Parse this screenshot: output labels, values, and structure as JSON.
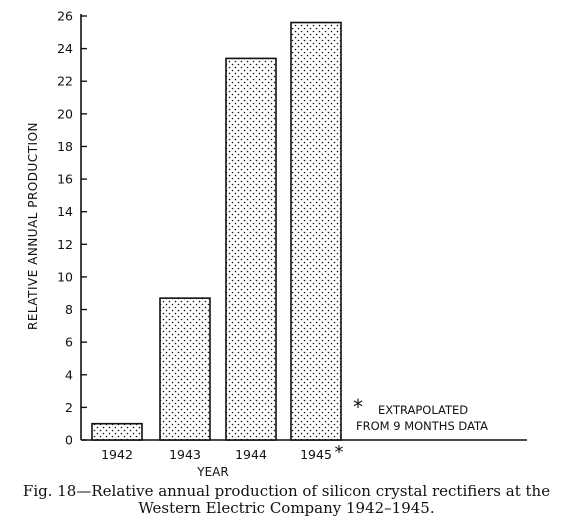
{
  "chart_data": {
    "type": "bar",
    "categories": [
      "1942",
      "1943",
      "1944",
      "1945"
    ],
    "values": [
      1.0,
      8.7,
      23.4,
      25.6
    ],
    "category_marks": [
      "",
      "",
      "",
      "*"
    ],
    "ylabel": "RELATIVE ANNUAL PRODUCTION",
    "xlabel": "YEAR",
    "ylim": [
      0,
      26
    ],
    "yticks": [
      0,
      2,
      4,
      6,
      8,
      10,
      12,
      14,
      16,
      18,
      20,
      22,
      24,
      26
    ],
    "grid": false,
    "bar_fill": "stippled",
    "annotation": {
      "symbol": "*",
      "lines": [
        "EXTRAPOLATED",
        "FROM 9 MONTHS DATA"
      ]
    }
  },
  "caption": {
    "line1": "Fig. 18—Relative annual production of silicon crystal rectifiers at the",
    "line2": "Western Electric Company 1942–1945."
  },
  "colors": {
    "ink": "#111111",
    "background": "#ffffff"
  }
}
